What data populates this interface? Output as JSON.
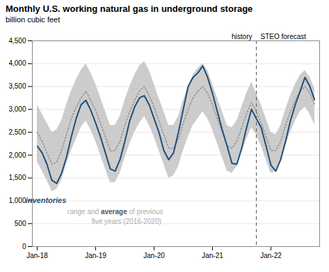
{
  "chart_data": {
    "type": "line",
    "title": "Monthly U.S. working natural gas in underground storage",
    "ylabel": "billion cubic feet",
    "x": [
      0,
      1,
      2,
      3,
      4,
      5,
      6,
      7,
      8,
      9,
      10,
      11,
      12,
      13,
      14,
      15,
      16,
      17,
      18,
      19,
      20,
      21,
      22,
      23,
      24,
      25,
      26,
      27,
      28,
      29,
      30,
      31,
      32,
      33,
      34,
      35,
      36,
      37,
      38,
      39,
      40,
      41,
      42,
      43,
      44,
      45,
      46,
      47,
      48,
      49,
      50,
      51,
      52,
      53,
      54,
      55,
      56,
      57
    ],
    "xlim": [
      -1,
      58
    ],
    "xticks": [
      {
        "value": 0,
        "label": "Jan-18"
      },
      {
        "value": 12,
        "label": "Jan-19"
      },
      {
        "value": 24,
        "label": "Jan-20"
      },
      {
        "value": 36,
        "label": "Jan-21"
      },
      {
        "value": 48,
        "label": "Jan-22"
      }
    ],
    "ylim": [
      0,
      4500
    ],
    "yticks": [
      0,
      500,
      {
        "value": 1000,
        "label": "1,000"
      },
      {
        "value": 1500,
        "label": "1,500"
      },
      {
        "value": 2000,
        "label": "2,000"
      },
      {
        "value": 2500,
        "label": "2,500"
      },
      {
        "value": 3000,
        "label": "3,000"
      },
      {
        "value": 3500,
        "label": "3,500"
      },
      {
        "value": 4000,
        "label": "4,000"
      },
      {
        "value": 4500,
        "label": "4,500"
      }
    ],
    "grid": true,
    "range": {
      "color": "#cccccc",
      "min": [
        1850,
        1650,
        1450,
        1200,
        1250,
        1450,
        1800,
        2100,
        2350,
        2600,
        2750,
        2550,
        2300,
        2000,
        1700,
        1400,
        1400,
        1600,
        1950,
        2250,
        2500,
        2700,
        2850,
        2650,
        2400,
        2100,
        1800,
        1500,
        1550,
        1750,
        2100,
        2400,
        2650,
        2800,
        2950,
        2800,
        2550,
        2250,
        1950,
        1650,
        1600,
        1750,
        2050,
        2350,
        2600,
        2450,
        2200,
        1900,
        1600,
        1650,
        1850,
        2200,
        2500,
        2750,
        2950,
        3050,
        2900,
        2650
      ],
      "max": [
        3100,
        2900,
        2700,
        2500,
        2550,
        2750,
        3100,
        3400,
        3650,
        3850,
        4000,
        3800,
        3550,
        3250,
        2950,
        2650,
        2650,
        2850,
        3200,
        3500,
        3750,
        3950,
        4050,
        3850,
        3550,
        3250,
        2950,
        2650,
        2650,
        2850,
        3200,
        3500,
        3750,
        3900,
        4000,
        3850,
        3550,
        3250,
        2950,
        2650,
        2600,
        2750,
        3050,
        3350,
        3600,
        3350,
        3100,
        2800,
        2500,
        2450,
        2650,
        3000,
        3300,
        3550,
        3750,
        3850,
        3700,
        3450
      ]
    },
    "series": [
      {
        "name": "average",
        "color": "#999999",
        "line_style": "dotted",
        "values": [
          2500,
          2300,
          2050,
          1800,
          1850,
          2100,
          2450,
          2800,
          3050,
          3250,
          3400,
          3200,
          2980,
          2700,
          2400,
          2100,
          2100,
          2300,
          2650,
          2950,
          3200,
          3400,
          3500,
          3300,
          3050,
          2750,
          2450,
          2150,
          2150,
          2350,
          2700,
          3000,
          3250,
          3400,
          3500,
          3350,
          3100,
          2800,
          2500,
          2200,
          2150,
          2300,
          2600,
          2900,
          3150,
          2950,
          2700,
          2400,
          2100,
          2100,
          2300,
          2650,
          2950,
          3200,
          3400,
          3500,
          3350,
          3100
        ]
      },
      {
        "name": "inventories",
        "color": "#1f4e79",
        "line_style": "solid",
        "values": [
          2200,
          2050,
          1800,
          1450,
          1380,
          1600,
          1950,
          2400,
          2800,
          3100,
          3200,
          2980,
          2700,
          2400,
          2050,
          1700,
          1650,
          1900,
          2300,
          2750,
          3050,
          3250,
          3300,
          3100,
          2800,
          2500,
          2100,
          1900,
          2050,
          2500,
          3000,
          3500,
          3700,
          3800,
          3950,
          3700,
          3350,
          2950,
          2550,
          2200,
          1820,
          1800,
          2150,
          2600,
          3000,
          2800,
          2600,
          2200,
          1780,
          1650,
          1900,
          2300,
          2750,
          3100,
          3400,
          3700,
          3500,
          3200
        ]
      }
    ],
    "split": {
      "x": 45,
      "color": "#555555",
      "line_style": "dashed",
      "labels": [
        "history",
        "STEO forecast"
      ]
    },
    "annotations": [
      {
        "lines": [
          [
            {
              "text": "inventories",
              "color": "#1f4e79"
            }
          ]
        ]
      },
      {
        "lines": [
          [
            {
              "text": "range and ",
              "color": "#aaaaaa"
            },
            {
              "text": "average",
              "color": "#555555"
            },
            {
              "text": " of previous",
              "color": "#aaaaaa"
            }
          ],
          [
            {
              "text": "five years (2016-2020)",
              "color": "#aaaaaa"
            }
          ]
        ]
      }
    ]
  }
}
